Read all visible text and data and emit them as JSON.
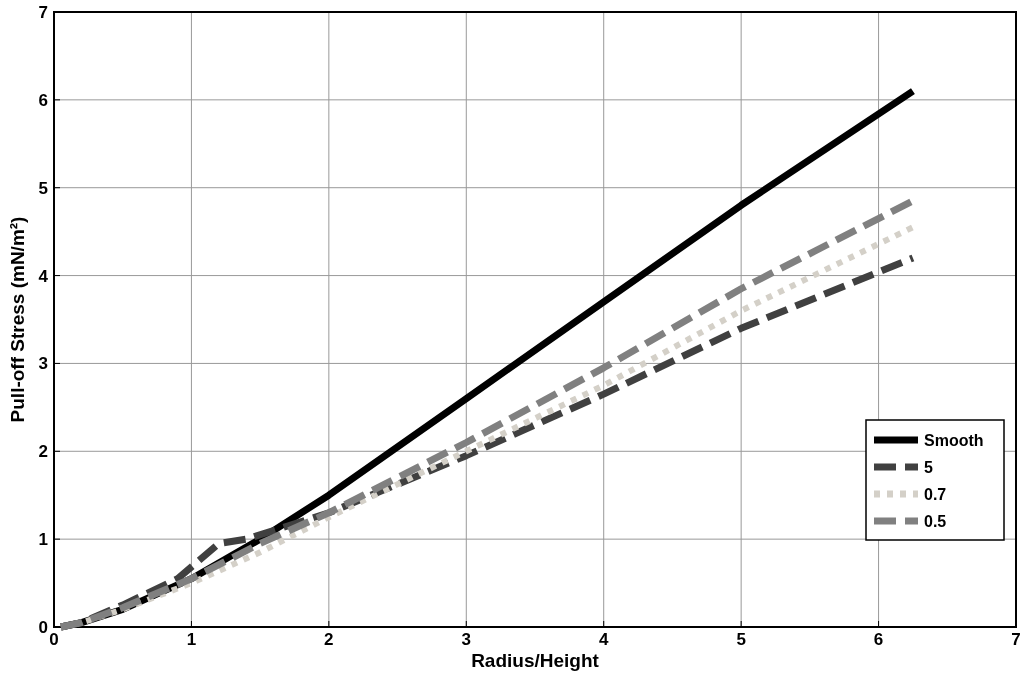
{
  "chart_data": {
    "type": "line",
    "xlabel": "Radius/Height",
    "ylabel": "Pull-off Stress (mN/m²)",
    "xlim": [
      0,
      7
    ],
    "ylim": [
      0,
      7
    ],
    "xticks": [
      0,
      1,
      2,
      3,
      4,
      5,
      6,
      7
    ],
    "yticks": [
      0,
      1,
      2,
      3,
      4,
      5,
      6,
      7
    ],
    "grid": true,
    "legend": "right",
    "series": [
      {
        "name": "Smooth",
        "color": "#000000",
        "line_style": "solid",
        "x": [
          0.05,
          0.2,
          0.5,
          1,
          1.5,
          2,
          3,
          4,
          5,
          6.25
        ],
        "values": [
          0,
          0.05,
          0.2,
          0.55,
          1.0,
          1.5,
          2.6,
          3.7,
          4.8,
          6.1
        ]
      },
      {
        "name": "5",
        "color": "#404040",
        "line_style": "dashed",
        "x": [
          0.05,
          0.2,
          0.5,
          0.9,
          1.2,
          1.4,
          1.7,
          2,
          3,
          4,
          5,
          6.25
        ],
        "values": [
          0,
          0.05,
          0.25,
          0.55,
          0.95,
          1.0,
          1.15,
          1.3,
          1.95,
          2.65,
          3.4,
          4.2
        ]
      },
      {
        "name": "0.7",
        "color": "#d4d0c8",
        "line_style": "dotted",
        "x": [
          0.05,
          0.2,
          0.5,
          1,
          1.5,
          2,
          3,
          4,
          5,
          6.25
        ],
        "values": [
          0,
          0.05,
          0.2,
          0.5,
          0.85,
          1.25,
          2.0,
          2.75,
          3.6,
          4.55
        ]
      },
      {
        "name": "0.5",
        "color": "#808080",
        "line_style": "dashed",
        "x": [
          0.05,
          0.2,
          0.5,
          1,
          1.5,
          2,
          3,
          4,
          5,
          6.25
        ],
        "values": [
          0,
          0.05,
          0.22,
          0.55,
          0.95,
          1.3,
          2.1,
          2.95,
          3.85,
          4.85
        ]
      }
    ]
  }
}
